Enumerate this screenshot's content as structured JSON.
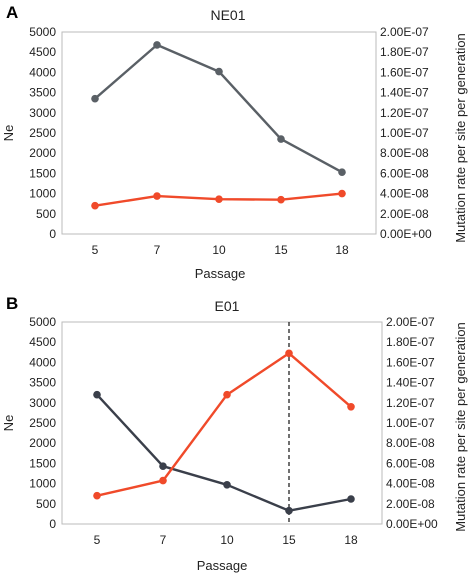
{
  "chart_data": [
    {
      "panel": "A",
      "type": "line",
      "title": "NE01",
      "xlabel": "Passage",
      "ylabel": "Ne",
      "y2label": "Mutation rate per site per generation",
      "categories": [
        "5",
        "7",
        "10",
        "15",
        "18"
      ],
      "ylim": [
        0,
        5000
      ],
      "y2lim": [
        0,
        2e-07
      ],
      "yticks": [
        "0",
        "500",
        "1000",
        "1500",
        "2000",
        "2500",
        "3000",
        "3500",
        "4000",
        "4500",
        "5000"
      ],
      "y2ticks": [
        "0.00E+00",
        "2.00E-08",
        "4.00E-08",
        "6.00E-08",
        "8.00E-08",
        "1.00E-07",
        "1.20E-07",
        "1.40E-07",
        "1.60E-07",
        "1.80E-07",
        "2.00E-07"
      ],
      "grid": false,
      "series": [
        {
          "axis": "left",
          "color": "#5a6066",
          "values": [
            3350,
            4680,
            4020,
            2350,
            1530
          ]
        },
        {
          "axis": "right",
          "color": "#f04a2a",
          "values": [
            2.8e-08,
            3.75e-08,
            3.45e-08,
            3.4e-08,
            4e-08
          ]
        }
      ]
    },
    {
      "panel": "B",
      "type": "line",
      "title": "E01",
      "xlabel": "Passage",
      "ylabel": "Ne",
      "y2label": "Mutation rate per site per generation",
      "categories": [
        "5",
        "7",
        "10",
        "15",
        "18"
      ],
      "ylim": [
        0,
        5000
      ],
      "y2lim": [
        0,
        2e-07
      ],
      "yticks": [
        "0",
        "500",
        "1000",
        "1500",
        "2000",
        "2500",
        "3000",
        "3500",
        "4000",
        "4500",
        "5000"
      ],
      "y2ticks": [
        "0.00E+00",
        "2.00E-08",
        "4.00E-08",
        "6.00E-08",
        "8.00E-08",
        "1.00E-07",
        "1.20E-07",
        "1.40E-07",
        "1.60E-07",
        "1.80E-07",
        "2.00E-07"
      ],
      "grid": false,
      "vline_category": "15",
      "series": [
        {
          "axis": "left",
          "color": "#3a3f4a",
          "values": [
            3200,
            1430,
            970,
            330,
            620
          ]
        },
        {
          "axis": "right",
          "color": "#f04a2a",
          "values": [
            2.8e-08,
            4.3e-08,
            1.28e-07,
            1.69e-07,
            1.16e-07
          ]
        }
      ]
    }
  ]
}
